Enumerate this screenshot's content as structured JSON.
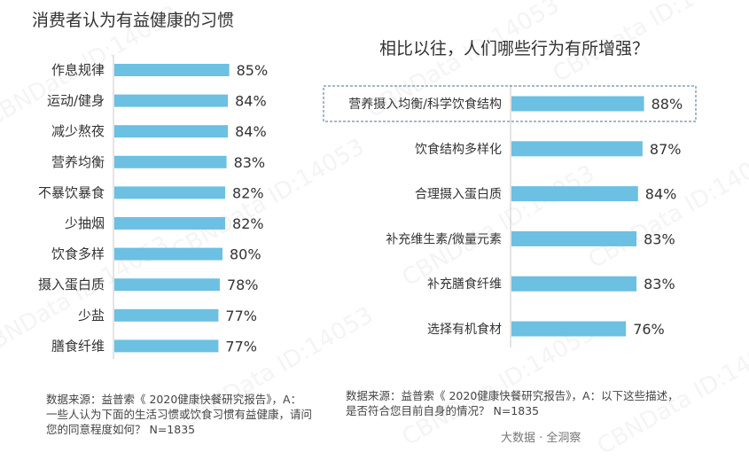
{
  "watermark": "CBNData ID:14053",
  "brand": "大数据 · 全洞察",
  "colors": {
    "bar": "#6cc0e2",
    "highlight_border": "#4a6f96",
    "axis": "#c8c8c8"
  },
  "chart_data": [
    {
      "type": "bar",
      "orientation": "horizontal",
      "title": "消费者认为有益健康的习惯",
      "categories": [
        "作息规律",
        "运动/健身",
        "减少熬夜",
        "营养均衡",
        "不暴饮暴食",
        "少抽烟",
        "饮食多样",
        "摄入蛋白质",
        "少盐",
        "膳食纤维"
      ],
      "values": [
        85,
        84,
        84,
        83,
        82,
        82,
        80,
        78,
        77,
        77
      ],
      "value_labels": [
        "85%",
        "84%",
        "84%",
        "83%",
        "82%",
        "82%",
        "80%",
        "78%",
        "77%",
        "77%"
      ],
      "xlim": [
        0,
        100
      ],
      "source": "数据来源：益普索《 2020健康快餐研究报告》，A：一些人认为下面的生活习惯或饮食习惯有益健康，请问您的同意程度如何？ N=1835"
    },
    {
      "type": "bar",
      "orientation": "horizontal",
      "title": "相比以往，人们哪些行为有所增强？",
      "categories": [
        "营养摄入均衡/科学饮食结构",
        "饮食结构多样化",
        "合理摄入蛋白质",
        "补充维生素/微量元素",
        "补充膳食纤维",
        "选择有机食材"
      ],
      "values": [
        88,
        87,
        84,
        83,
        83,
        76
      ],
      "value_labels": [
        "88%",
        "87%",
        "84%",
        "83%",
        "83%",
        "76%"
      ],
      "highlighted": [
        0
      ],
      "xlim": [
        0,
        100
      ],
      "source": "数据来源：益普索《 2020健康快餐研究报告》，A：以下这些描述，是否符合您目前自身的情况？ N=1835"
    }
  ]
}
